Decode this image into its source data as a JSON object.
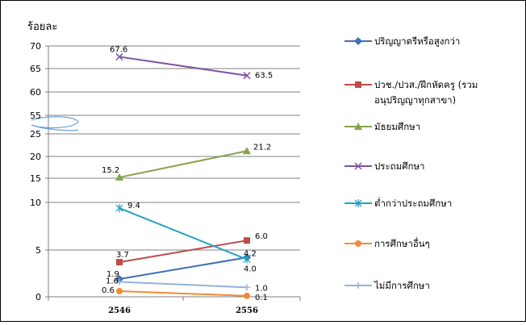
{
  "chart_data": {
    "type": "line",
    "ylabel": "ร้อยละ",
    "x": [
      "2546",
      "2556"
    ],
    "yticks": [
      "0",
      "5",
      "10",
      "15",
      "20",
      "25",
      "55",
      "60",
      "65",
      "70"
    ],
    "y_break": "25–55 (axis break)",
    "grid": "horizontal",
    "legend_position": "right",
    "series": [
      {
        "name": "ปริญญาตรีหรือสูงกว่า",
        "values": [
          1.9,
          4.2
        ],
        "color": "#3E6FB3",
        "marker": "diamond",
        "labels": [
          "1.9",
          "4.2"
        ]
      },
      {
        "name": "ปวช./ปวส./ฝึกหัดครู (รวมอนุปริญญาทุกสาขา)",
        "legend_lines": [
          "ปวช./ปวส./ฝึกหัดครู (รวม",
          "อนุปริญญาทุกสาขา)"
        ],
        "values": [
          3.7,
          6.0
        ],
        "color": "#BE4B48",
        "marker": "square",
        "labels": [
          "3.7",
          "6.0"
        ]
      },
      {
        "name": "มัธยมศึกษา",
        "values": [
          15.2,
          21.2
        ],
        "color": "#84A44A",
        "marker": "triangle",
        "labels": [
          "15.2",
          "21.2"
        ]
      },
      {
        "name": "ประถมศึกษา",
        "values": [
          67.6,
          63.5
        ],
        "color": "#7D52A0",
        "marker": "x",
        "labels": [
          "67.6",
          "63.5"
        ]
      },
      {
        "name": "ต่ำกว่าประถมศึกษา",
        "values": [
          9.4,
          4.0
        ],
        "color": "#23A3C0",
        "marker": "star",
        "labels": [
          "9.4",
          "4.0"
        ]
      },
      {
        "name": "การศึกษาอื่นๆ",
        "values": [
          0.6,
          0.1
        ],
        "color": "#F38A33",
        "marker": "circle",
        "labels": [
          "0.6",
          "0.1"
        ]
      },
      {
        "name": "ไม่มีการศึกษา",
        "values": [
          1.6,
          1.0
        ],
        "color": "#94B3DE",
        "marker": "plus",
        "labels": [
          "1.6",
          "1.0"
        ]
      }
    ]
  }
}
